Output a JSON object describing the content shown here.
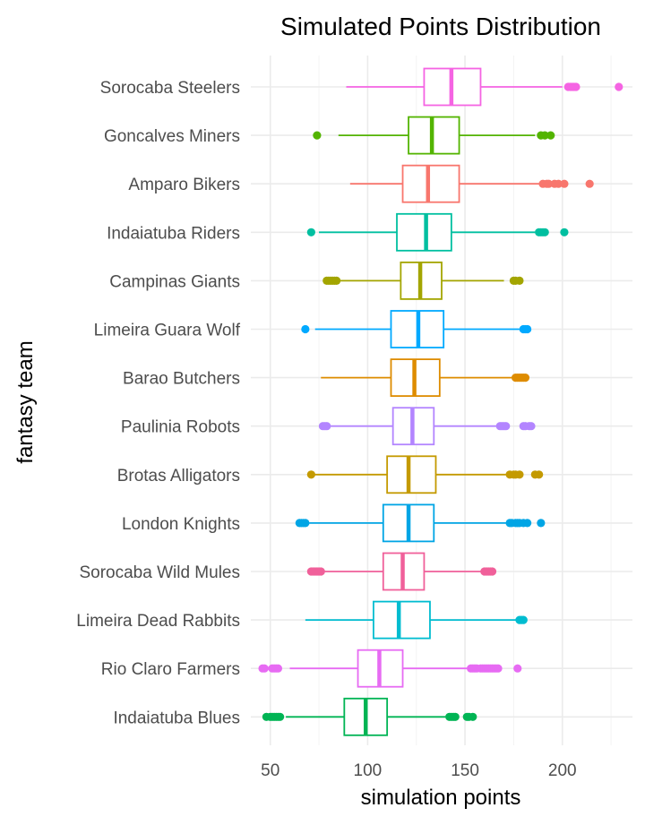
{
  "chart_data": {
    "type": "boxplot",
    "orientation": "horizontal",
    "title": "Simulated Points Distribution",
    "xlabel": "simulation points",
    "ylabel": "fantasy team",
    "xlim": [
      40,
      236
    ],
    "x_ticks": [
      50,
      100,
      150,
      200
    ],
    "grid": true,
    "legend": "none",
    "series": [
      {
        "name": "Sorocaba Steelers",
        "color": "#F564E3",
        "whisker_low": 89,
        "q1": 129,
        "median": 143,
        "q3": 158,
        "whisker_high": 200,
        "outliers": [
          203,
          204,
          205,
          206,
          207,
          229
        ]
      },
      {
        "name": "Goncalves Miners",
        "color": "#53B400",
        "whisker_low": 85,
        "q1": 121,
        "median": 133,
        "q3": 147,
        "whisker_high": 186,
        "outliers": [
          74,
          189,
          191,
          194
        ]
      },
      {
        "name": "Amparo Bikers",
        "color": "#F8766D",
        "whisker_low": 91,
        "q1": 118,
        "median": 131,
        "q3": 147,
        "whisker_high": 188,
        "outliers": [
          190,
          192,
          193,
          196,
          198,
          201,
          214
        ]
      },
      {
        "name": "Indaiatuba Riders",
        "color": "#00BFA0",
        "whisker_low": 75,
        "q1": 115,
        "median": 130,
        "q3": 143,
        "whisker_high": 186,
        "outliers": [
          71,
          188,
          189,
          190,
          191,
          201
        ]
      },
      {
        "name": "Campinas Giants",
        "color": "#A3A500",
        "whisker_low": 86,
        "q1": 117,
        "median": 127,
        "q3": 138,
        "whisker_high": 170,
        "outliers": [
          79,
          80,
          81,
          82,
          83,
          84,
          175,
          176,
          178
        ]
      },
      {
        "name": "Limeira Guara Wolf",
        "color": "#00A9FF",
        "whisker_low": 73,
        "q1": 112,
        "median": 126,
        "q3": 139,
        "whisker_high": 178,
        "outliers": [
          68,
          180,
          181,
          182
        ]
      },
      {
        "name": "Barao Butchers",
        "color": "#DE8C00",
        "whisker_low": 76,
        "q1": 112,
        "median": 124,
        "q3": 137,
        "whisker_high": 174,
        "outliers": [
          176,
          177,
          178,
          179,
          180,
          181
        ]
      },
      {
        "name": "Paulinia Robots",
        "color": "#B385FF",
        "whisker_low": 81,
        "q1": 113,
        "median": 123,
        "q3": 134,
        "whisker_high": 166,
        "outliers": [
          77,
          78,
          79,
          168,
          169,
          170,
          171,
          180,
          181,
          183,
          184
        ]
      },
      {
        "name": "Brotas Alligators",
        "color": "#C49A00",
        "whisker_low": 72,
        "q1": 110,
        "median": 121,
        "q3": 135,
        "whisker_high": 171,
        "outliers": [
          71,
          173,
          175,
          176,
          178,
          186,
          188
        ]
      },
      {
        "name": "London Knights",
        "color": "#00A5E5",
        "whisker_low": 70,
        "q1": 108,
        "median": 121,
        "q3": 134,
        "whisker_high": 171,
        "outliers": [
          65,
          66,
          67,
          68,
          173,
          174,
          176,
          177,
          178,
          180,
          182,
          189
        ]
      },
      {
        "name": "Sorocaba Wild Mules",
        "color": "#F0609A",
        "whisker_low": 78,
        "q1": 108,
        "median": 118,
        "q3": 129,
        "whisker_high": 158,
        "outliers": [
          71,
          72,
          73,
          74,
          75,
          76,
          160,
          161,
          162,
          163,
          164
        ]
      },
      {
        "name": "Limeira Dead Rabbits",
        "color": "#00BCD0",
        "whisker_low": 68,
        "q1": 103,
        "median": 116,
        "q3": 132,
        "whisker_high": 176,
        "outliers": [
          178,
          179,
          180
        ]
      },
      {
        "name": "Rio Claro Farmers",
        "color": "#E76BF3",
        "whisker_low": 60,
        "q1": 95,
        "median": 106,
        "q3": 118,
        "whisker_high": 151,
        "outliers": [
          46,
          47,
          51,
          52,
          53,
          54,
          153,
          154,
          155,
          156,
          158,
          159,
          160,
          161,
          162,
          163,
          164,
          165,
          166,
          167,
          177
        ]
      },
      {
        "name": "Indaiatuba Blues",
        "color": "#00B454",
        "whisker_low": 58,
        "q1": 88,
        "median": 99,
        "q3": 110,
        "whisker_high": 140,
        "outliers": [
          48,
          50,
          51,
          52,
          53,
          54,
          55,
          142,
          143,
          144,
          145,
          151,
          152,
          154
        ]
      }
    ]
  }
}
